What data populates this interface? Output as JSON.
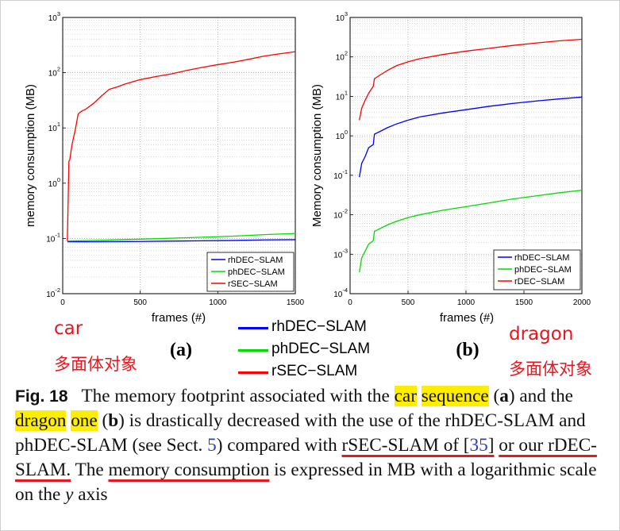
{
  "chart_data": [
    {
      "type": "line",
      "panel_label": "(a)",
      "annotation": "car",
      "annotation_cn": "多面体对象",
      "xlabel": "frames (#)",
      "ylabel": "memory consumption (MB)",
      "xlim": [
        0,
        1500
      ],
      "ylim": [
        0.01,
        1000
      ],
      "yscale": "log",
      "grid": true,
      "legend_position": "bottom-right",
      "x_ticks": [
        "0",
        "500",
        "1000",
        "1500"
      ],
      "y_ticks": [
        {
          "base": "10",
          "exp": "-2"
        },
        {
          "base": "10",
          "exp": "-1"
        },
        {
          "base": "10",
          "exp": "0"
        },
        {
          "base": "10",
          "exp": "1"
        },
        {
          "base": "10",
          "exp": "2"
        },
        {
          "base": "10",
          "exp": "3"
        }
      ],
      "series": [
        {
          "name": "rhDEC−SLAM",
          "color": "#0000ff",
          "x": [
            30,
            200,
            500,
            800,
            1100,
            1300,
            1500
          ],
          "y": [
            0.087,
            0.087,
            0.088,
            0.09,
            0.092,
            0.094,
            0.095
          ]
        },
        {
          "name": "phDEC−SLAM",
          "color": "#00dd00",
          "x": [
            30,
            200,
            500,
            800,
            1100,
            1300,
            1500
          ],
          "y": [
            0.09,
            0.092,
            0.097,
            0.103,
            0.11,
            0.117,
            0.123
          ]
        },
        {
          "name": "rSEC−SLAM",
          "color": "#ff0000",
          "x": [
            30,
            40,
            45,
            60,
            80,
            100,
            120,
            150,
            200,
            250,
            300,
            350,
            400,
            500,
            600,
            700,
            800,
            900,
            1000,
            1100,
            1200,
            1300,
            1400,
            1500
          ],
          "y": [
            0.09,
            2.5,
            2.6,
            5,
            9,
            18,
            20,
            22,
            28,
            38,
            50,
            55,
            62,
            75,
            85,
            95,
            110,
            125,
            140,
            155,
            175,
            200,
            220,
            240
          ]
        }
      ]
    },
    {
      "type": "line",
      "panel_label": "(b)",
      "annotation": "dragon",
      "annotation_cn": "多面体对象",
      "xlabel": "frames (#)",
      "ylabel": "Memory consumption (MB)",
      "xlim": [
        0,
        2000
      ],
      "ylim": [
        0.0001,
        1000
      ],
      "yscale": "log",
      "grid": true,
      "legend_position": "bottom-right",
      "x_ticks": [
        "0",
        "500",
        "1000",
        "1500",
        "2000"
      ],
      "y_ticks": [
        {
          "base": "10",
          "exp": "-4"
        },
        {
          "base": "10",
          "exp": "-3"
        },
        {
          "base": "10",
          "exp": "-2"
        },
        {
          "base": "10",
          "exp": "-1"
        },
        {
          "base": "10",
          "exp": "0"
        },
        {
          "base": "10",
          "exp": "1"
        },
        {
          "base": "10",
          "exp": "2"
        },
        {
          "base": "10",
          "exp": "3"
        }
      ],
      "series": [
        {
          "name": "rhDEC−SLAM",
          "color": "#0000ff",
          "x": [
            80,
            100,
            130,
            160,
            200,
            210,
            260,
            320,
            400,
            500,
            600,
            800,
            1000,
            1200,
            1400,
            1600,
            1800,
            2000
          ],
          "y": [
            0.09,
            0.2,
            0.3,
            0.5,
            0.6,
            1.1,
            1.3,
            1.6,
            2.0,
            2.5,
            3.0,
            3.8,
            4.6,
            5.6,
            6.6,
            7.6,
            8.6,
            9.6
          ]
        },
        {
          "name": "phDEC−SLAM",
          "color": "#00dd00",
          "x": [
            80,
            100,
            130,
            160,
            200,
            210,
            260,
            320,
            400,
            500,
            600,
            800,
            1000,
            1200,
            1400,
            1600,
            1800,
            2000
          ],
          "y": [
            0.00035,
            0.0008,
            0.0012,
            0.0018,
            0.0022,
            0.0038,
            0.0045,
            0.0055,
            0.0068,
            0.0085,
            0.01,
            0.013,
            0.016,
            0.02,
            0.025,
            0.03,
            0.036,
            0.042
          ]
        },
        {
          "name": "rDEC−SLAM",
          "color": "#ff0000",
          "x": [
            80,
            100,
            130,
            160,
            200,
            210,
            260,
            320,
            400,
            500,
            600,
            800,
            1000,
            1200,
            1400,
            1600,
            1800,
            2000
          ],
          "y": [
            2.5,
            5,
            8,
            12,
            18,
            28,
            35,
            45,
            60,
            75,
            90,
            115,
            140,
            165,
            195,
            225,
            255,
            280
          ]
        }
      ]
    }
  ],
  "shared_legend": [
    {
      "label": "rhDEC−SLAM",
      "color": "#0000ff"
    },
    {
      "label": "phDEC−SLAM",
      "color": "#00dd00"
    },
    {
      "label": "rSEC−SLAM",
      "color": "#ff0000"
    }
  ],
  "caption": {
    "fig_label": "Fig. 18",
    "t1": "The memory footprint associated with the",
    "t2": "car",
    "t3": "sequence",
    "t4": "(",
    "t5": "a",
    "t6": ") and the",
    "t7": "dragon",
    "t8": "one",
    "t9": "(",
    "t10": "b",
    "t11": ") is drastically decreased with the use of the rhDEC-SLAM and phDEC-SLAM (see Sect.",
    "t12": "5",
    "t13": ") compared with",
    "t14": "rSEC-SLAM of [",
    "t15": "35",
    "t16": "]",
    "t17": "or our rDEC-SLAM.",
    "t18": "The",
    "t19": "memory consumption",
    "t20": "is expressed in MB with a logarithmic scale on the",
    "t21": "y",
    "t22": "axis"
  },
  "colors": {
    "annotation_red": "#e8161e",
    "highlight": "#ffee00"
  }
}
